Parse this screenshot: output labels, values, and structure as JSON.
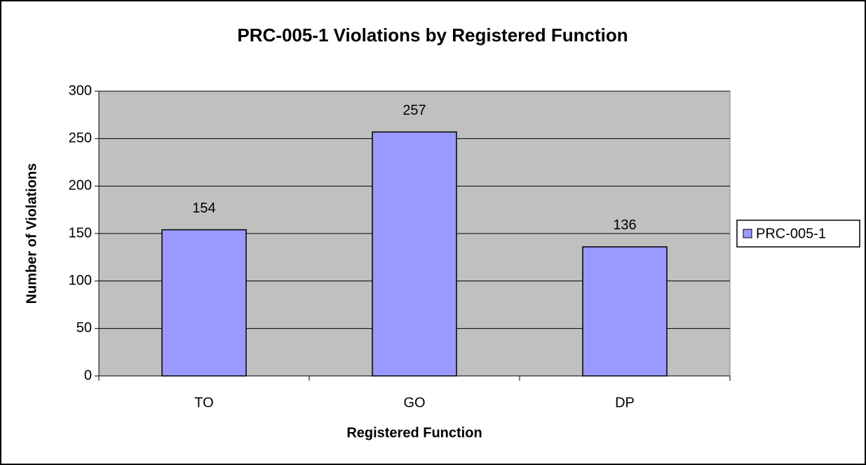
{
  "chart_data": {
    "type": "bar",
    "title": "PRC-005-1 Violations by Registered Function",
    "x_label": "Registered Function",
    "y_label": "Number of Violations",
    "categories": [
      "TO",
      "GO",
      "DP"
    ],
    "series": [
      {
        "name": "PRC-005-1",
        "color": "#9999ff",
        "values": [
          154,
          257,
          136
        ]
      }
    ],
    "ylim": [
      0,
      300
    ],
    "yticks": [
      0,
      50,
      100,
      150,
      200,
      250,
      300
    ],
    "grid": true,
    "legend": "right",
    "plot_background": "#c0c0c0"
  }
}
